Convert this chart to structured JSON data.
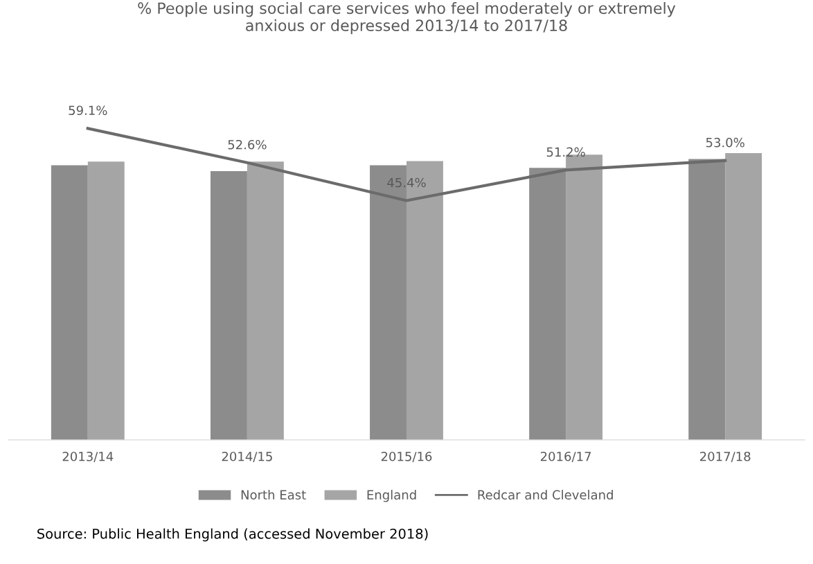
{
  "chart_data": {
    "type": "bar",
    "title": "% People using social care services who feel moderately or extremely\nanxious or depressed 2013/14 to 2017/18",
    "categories": [
      "2013/14",
      "2014/15",
      "2015/16",
      "2016/17",
      "2017/18"
    ],
    "series": [
      {
        "name": "North East",
        "color": "#8c8c8c",
        "values": [
          52.1,
          51.0,
          52.1,
          51.6,
          53.3
        ]
      },
      {
        "name": "England",
        "color": "#a5a5a5",
        "values": [
          52.8,
          52.8,
          52.9,
          54.1,
          54.4
        ]
      },
      {
        "name": "Redcar and Cleveland",
        "type": "line",
        "color": "#6b6b6b",
        "values": [
          59.1,
          52.6,
          45.4,
          51.2,
          53.0
        ],
        "value_labels": [
          "59.1%",
          "52.6%",
          "45.4%",
          "51.2%",
          "53.0%"
        ]
      }
    ],
    "tick_labels": "x",
    "grid": false,
    "legend": "bottom",
    "marker": "none",
    "annotations": [
      "Source: Public Health England (accessed November 2018)"
    ]
  }
}
